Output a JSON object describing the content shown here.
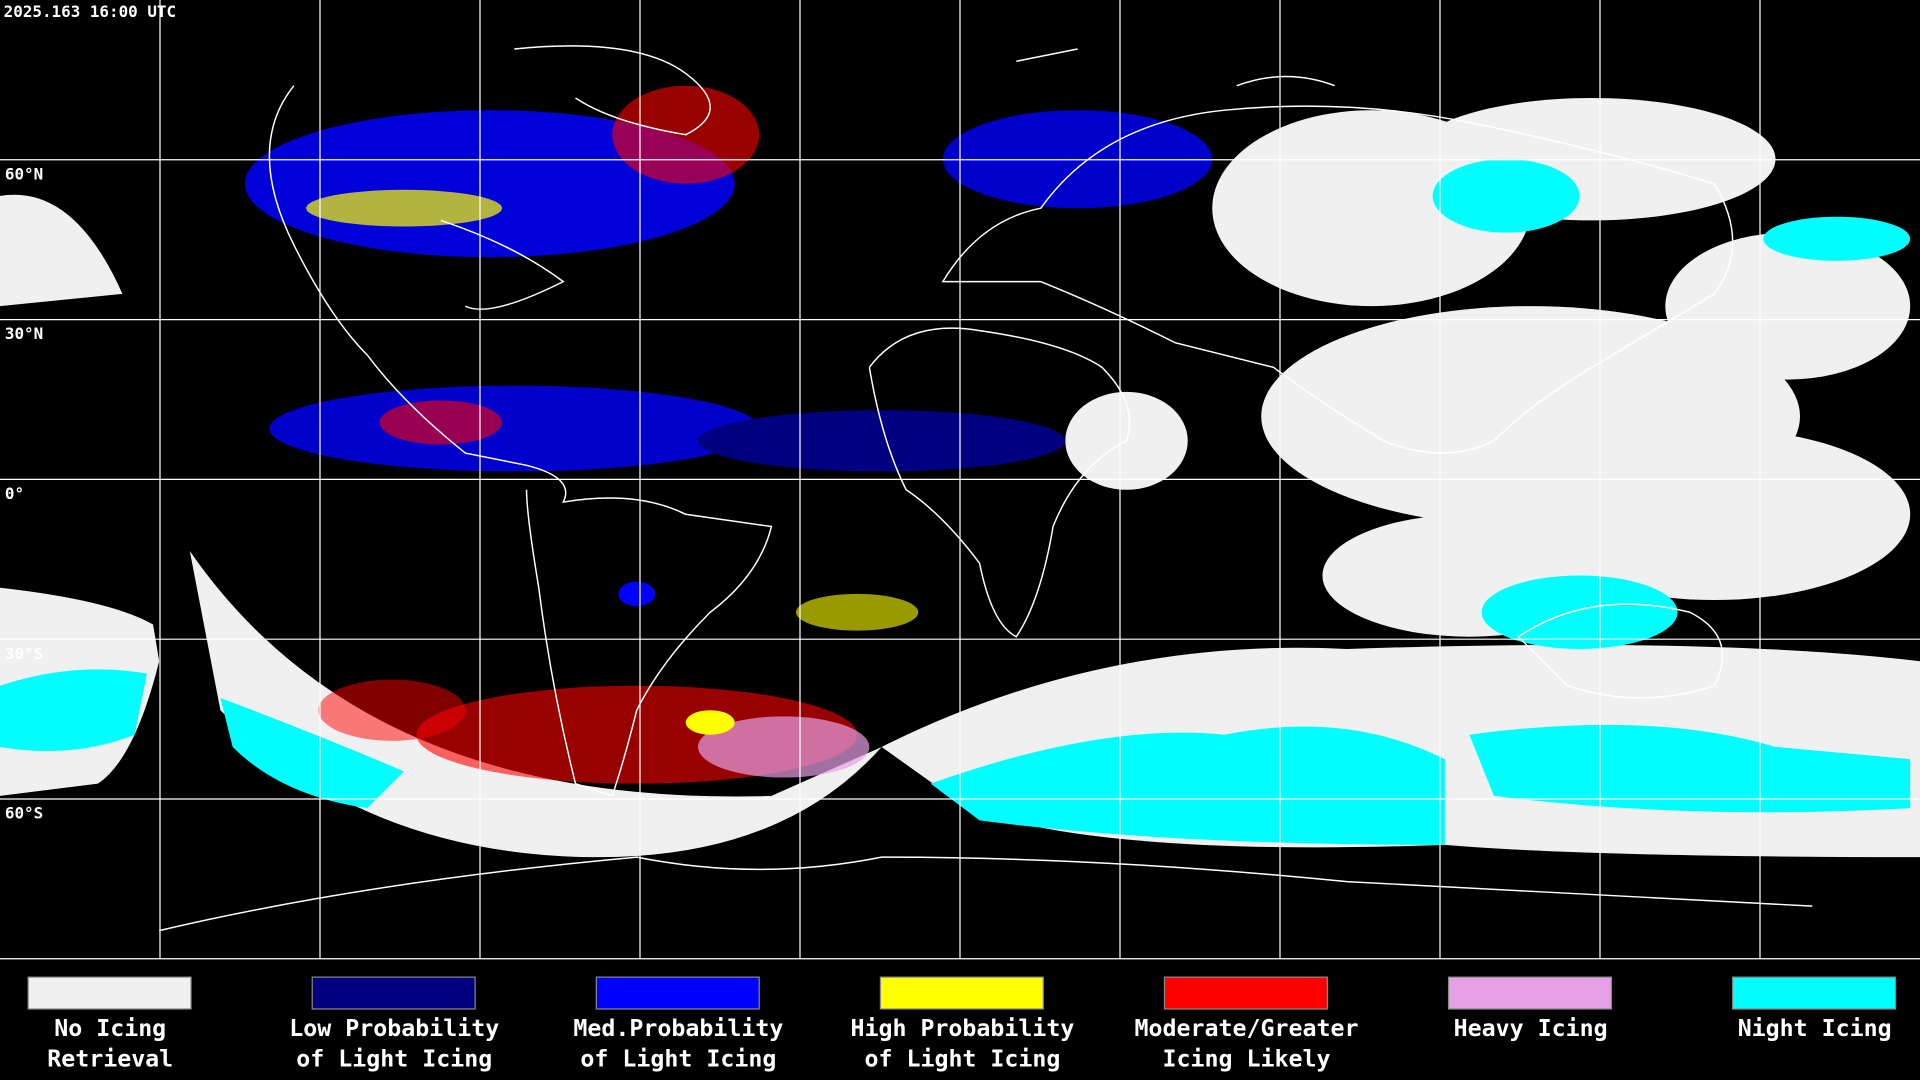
{
  "header": {
    "timestamp": "2025.163 16:00 UTC"
  },
  "map": {
    "latitude_labels": [
      "60°N",
      "30°N",
      "0°",
      "30°S",
      "60°S"
    ]
  },
  "legend": {
    "items": [
      {
        "color": "#f0f0f0",
        "lines": [
          "No Icing",
          "Retrieval"
        ]
      },
      {
        "color": "#000080",
        "lines": [
          "Low Probability",
          "of Light Icing"
        ]
      },
      {
        "color": "#0000ff",
        "lines": [
          "Med.Probability",
          "of Light Icing"
        ]
      },
      {
        "color": "#ffff00",
        "lines": [
          "High Probability",
          "of Light Icing"
        ]
      },
      {
        "color": "#ff0000",
        "lines": [
          "Moderate/Greater",
          "Icing Likely"
        ]
      },
      {
        "color": "#e6a0e6",
        "lines": [
          "Heavy Icing"
        ]
      },
      {
        "color": "#00ffff",
        "lines": [
          "Night Icing"
        ]
      }
    ]
  }
}
